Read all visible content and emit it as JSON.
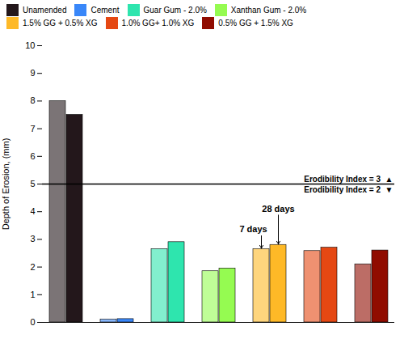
{
  "chart_data": {
    "type": "bar",
    "ylabel": "Depth of Erosion, (mm)",
    "categories": [
      null,
      null
    ],
    "series": [
      {
        "name": "Unamended",
        "values": [
          8.0,
          7.5
        ]
      },
      {
        "name": "Cement",
        "values": [
          0.1,
          0.12
        ]
      },
      {
        "name": "Guar Gum - 2.0%",
        "values": [
          2.65,
          2.9
        ]
      },
      {
        "name": "Xanthan Gum - 2.0%",
        "values": [
          1.85,
          1.95
        ]
      },
      {
        "name": "1.5% GG + 0.5% XG",
        "values": [
          2.65,
          2.8
        ]
      },
      {
        "name": "1.0% GG+ 1.0% XG",
        "values": [
          2.58,
          2.7
        ]
      },
      {
        "name": "0.5% GG + 1.5% XG",
        "values": [
          2.1,
          2.6
        ]
      }
    ],
    "ylim": [
      0,
      10
    ],
    "yticks": [
      0,
      1,
      2,
      3,
      4,
      5,
      6,
      7,
      8,
      9,
      10
    ],
    "tick_labels": "y",
    "legend": "upper right",
    "hlines": [
      {
        "y": 5.0,
        "label_above": "Erodibility Index = 3  ▲",
        "label_below": "Erodibility Index = 2  ▼"
      }
    ],
    "annotations": [
      {
        "text": "7 days",
        "series": "1.5% GG + 0.5% XG",
        "index": 0
      },
      {
        "text": "28 days",
        "series": "1.5% GG + 0.5% XG",
        "index": 1
      }
    ]
  }
}
